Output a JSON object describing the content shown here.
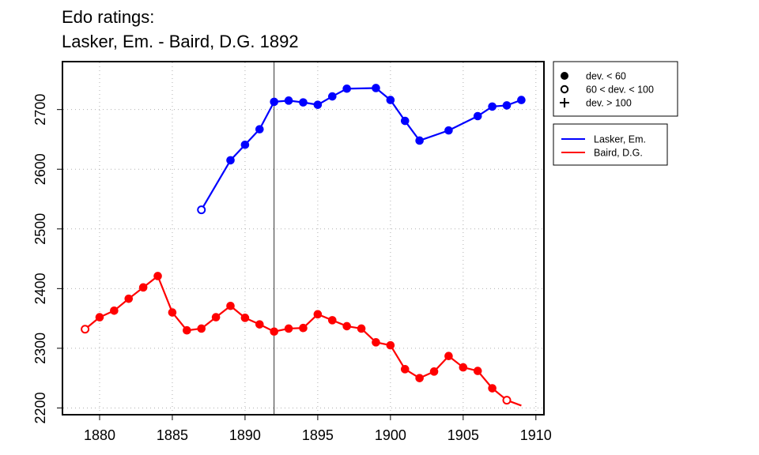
{
  "title_line1": "Edo ratings:",
  "title_line2": "Lasker, Em. - Baird, D.G. 1892",
  "chart_data": {
    "type": "line",
    "x_ticks": [
      1880,
      1885,
      1890,
      1895,
      1900,
      1905,
      1910
    ],
    "y_ticks": [
      2200,
      2300,
      2400,
      2500,
      2600,
      2700
    ],
    "xlim": [
      1877.5,
      1910.5
    ],
    "ylim": [
      2190,
      2779
    ],
    "grid": true,
    "vline_year": 1892,
    "legend_markers": [
      {
        "marker": "filled",
        "label": "dev. < 60"
      },
      {
        "marker": "open",
        "label": "60 < dev. < 100"
      },
      {
        "marker": "plus",
        "label": "dev. > 100"
      }
    ],
    "series": [
      {
        "name": "Lasker, Em.",
        "color": "#0000ff",
        "points": [
          {
            "x": 1887,
            "y": 2532,
            "m": "open"
          },
          {
            "x": 1889,
            "y": 2615,
            "m": "filled"
          },
          {
            "x": 1890,
            "y": 2641,
            "m": "filled"
          },
          {
            "x": 1891,
            "y": 2667,
            "m": "filled"
          },
          {
            "x": 1892,
            "y": 2713,
            "m": "filled"
          },
          {
            "x": 1893,
            "y": 2715,
            "m": "filled"
          },
          {
            "x": 1894,
            "y": 2712,
            "m": "filled"
          },
          {
            "x": 1895,
            "y": 2708,
            "m": "filled"
          },
          {
            "x": 1896,
            "y": 2722,
            "m": "filled"
          },
          {
            "x": 1897,
            "y": 2735,
            "m": "filled"
          },
          {
            "x": 1899,
            "y": 2736,
            "m": "filled"
          },
          {
            "x": 1900,
            "y": 2716,
            "m": "filled"
          },
          {
            "x": 1901,
            "y": 2681,
            "m": "filled"
          },
          {
            "x": 1902,
            "y": 2648,
            "m": "filled"
          },
          {
            "x": 1904,
            "y": 2665,
            "m": "filled"
          },
          {
            "x": 1906,
            "y": 2689,
            "m": "filled"
          },
          {
            "x": 1907,
            "y": 2705,
            "m": "filled"
          },
          {
            "x": 1908,
            "y": 2707,
            "m": "filled"
          },
          {
            "x": 1909,
            "y": 2716,
            "m": "filled"
          }
        ]
      },
      {
        "name": "Baird, D.G.",
        "color": "#ff0000",
        "points": [
          {
            "x": 1879,
            "y": 2332,
            "m": "open"
          },
          {
            "x": 1880,
            "y": 2352,
            "m": "filled"
          },
          {
            "x": 1881,
            "y": 2363,
            "m": "filled"
          },
          {
            "x": 1882,
            "y": 2383,
            "m": "filled"
          },
          {
            "x": 1883,
            "y": 2402,
            "m": "filled"
          },
          {
            "x": 1884,
            "y": 2421,
            "m": "filled"
          },
          {
            "x": 1885,
            "y": 2360,
            "m": "filled"
          },
          {
            "x": 1886,
            "y": 2330,
            "m": "filled"
          },
          {
            "x": 1887,
            "y": 2333,
            "m": "filled"
          },
          {
            "x": 1888,
            "y": 2352,
            "m": "filled"
          },
          {
            "x": 1889,
            "y": 2371,
            "m": "filled"
          },
          {
            "x": 1890,
            "y": 2351,
            "m": "filled"
          },
          {
            "x": 1891,
            "y": 2340,
            "m": "filled"
          },
          {
            "x": 1892,
            "y": 2328,
            "m": "filled"
          },
          {
            "x": 1893,
            "y": 2333,
            "m": "filled"
          },
          {
            "x": 1894,
            "y": 2334,
            "m": "filled"
          },
          {
            "x": 1895,
            "y": 2357,
            "m": "filled"
          },
          {
            "x": 1896,
            "y": 2347,
            "m": "filled"
          },
          {
            "x": 1897,
            "y": 2337,
            "m": "filled"
          },
          {
            "x": 1898,
            "y": 2333,
            "m": "filled"
          },
          {
            "x": 1899,
            "y": 2310,
            "m": "filled"
          },
          {
            "x": 1900,
            "y": 2305,
            "m": "filled"
          },
          {
            "x": 1901,
            "y": 2265,
            "m": "filled"
          },
          {
            "x": 1902,
            "y": 2250,
            "m": "filled"
          },
          {
            "x": 1903,
            "y": 2261,
            "m": "filled"
          },
          {
            "x": 1904,
            "y": 2287,
            "m": "filled"
          },
          {
            "x": 1905,
            "y": 2268,
            "m": "filled"
          },
          {
            "x": 1906,
            "y": 2262,
            "m": "filled"
          },
          {
            "x": 1907,
            "y": 2233,
            "m": "filled"
          },
          {
            "x": 1908,
            "y": 2213,
            "m": "open"
          },
          {
            "x": 1909,
            "y": 2204,
            "m": "none"
          }
        ]
      }
    ]
  }
}
